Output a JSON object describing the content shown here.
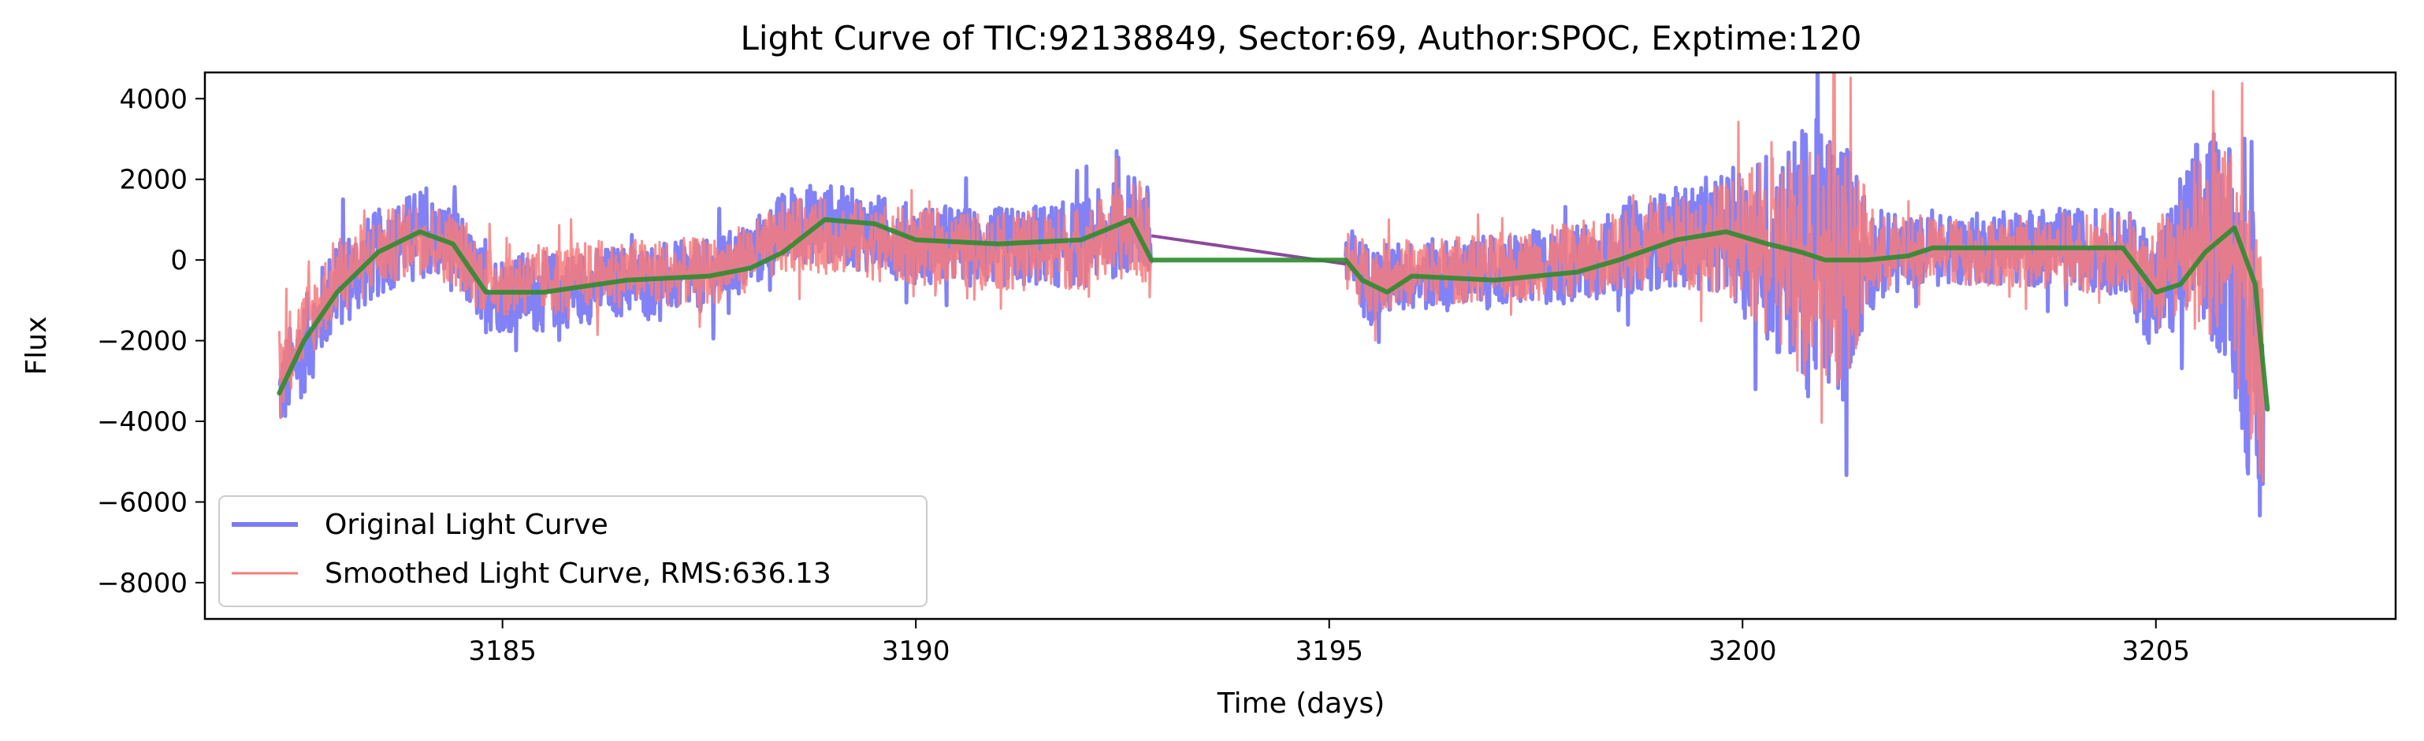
{
  "chart_data": {
    "type": "line",
    "title": "Light Curve of TIC:92138849, Sector:69, Author:SPOC, Exptime:120",
    "xlabel": "Time (days)",
    "ylabel": "Flux",
    "xlim": [
      3181.4,
      3207.9
    ],
    "ylim": [
      -8900,
      4650
    ],
    "x_ticks": [
      3185,
      3190,
      3195,
      3200,
      3205
    ],
    "x_tick_labels": [
      "3185",
      "3190",
      "3195",
      "3200",
      "3205"
    ],
    "y_ticks": [
      -8000,
      -6000,
      -4000,
      -2000,
      0,
      2000,
      4000
    ],
    "y_tick_labels": [
      "−8000",
      "−6000",
      "−4000",
      "−2000",
      "0",
      "2000",
      "4000"
    ],
    "grid": false,
    "legend_position": "lower-left",
    "series": [
      {
        "name": "Original Light Curve",
        "color": "#7b7bf5",
        "segments": [
          {
            "x": [
              3182.3,
              3183.0,
              3183.6,
              3184.0,
              3184.4,
              3184.8,
              3185.5,
              3186.5,
              3187.5,
              3188.0,
              3188.5,
              3189.0,
              3190.0,
              3191.0,
              3192.0,
              3192.7,
              3192.85
            ],
            "center": [
              -3300,
              -600,
              300,
              700,
              300,
              -800,
              -800,
              -500,
              -400,
              100,
              900,
              900,
              400,
              300,
              400,
              1000,
              300
            ],
            "amp": [
              1200,
              1200,
              1100,
              1100,
              1100,
              1000,
              1000,
              900,
              900,
              900,
              1000,
              1000,
              1000,
              1000,
              1100,
              1300,
              1400
            ]
          },
          {
            "x": [
              3195.2,
              3195.5,
              3196.0,
              3197.0,
              3198.0,
              3199.0,
              3199.8,
              3200.3,
              3200.8,
              3201.2,
              3201.6,
              3202.0,
              3203.0,
              3204.0,
              3204.6,
              3205.0,
              3205.5,
              3205.9,
              3206.3
            ],
            "center": [
              -100,
              -600,
              -400,
              -300,
              -100,
              500,
              700,
              300,
              0,
              0,
              100,
              200,
              300,
              300,
              200,
              -800,
              600,
              300,
              -3700
            ],
            "amp": [
              1000,
              1000,
              900,
              900,
              1000,
              1200,
              1500,
              2500,
              3500,
              3500,
              1200,
              900,
              900,
              1000,
              1100,
              1600,
              2500,
              3000,
              4000
            ]
          }
        ],
        "bridge": {
          "x": [
            3192.85,
            3195.2
          ],
          "y": [
            600,
            -100
          ]
        }
      },
      {
        "name": "Smoothed Light Curve, RMS:636.13",
        "color": "#f77b7b",
        "segments": [
          {
            "x": [
              3182.3,
              3183.0,
              3183.6,
              3184.0,
              3184.4,
              3184.8,
              3185.5,
              3186.5,
              3187.5,
              3188.0,
              3188.5,
              3189.0,
              3190.0,
              3191.0,
              3192.0,
              3192.7,
              3192.85
            ],
            "center": [
              -2600,
              -400,
              300,
              600,
              300,
              -500,
              -500,
              -300,
              -300,
              100,
              600,
              600,
              300,
              200,
              300,
              800,
              200
            ],
            "amp": [
              1100,
              1000,
              950,
              950,
              950,
              900,
              900,
              850,
              850,
              850,
              950,
              950,
              950,
              950,
              1050,
              1200,
              1300
            ]
          },
          {
            "x": [
              3195.2,
              3195.5,
              3196.0,
              3197.0,
              3198.0,
              3199.0,
              3199.8,
              3200.3,
              3200.8,
              3201.2,
              3201.6,
              3202.0,
              3203.0,
              3204.0,
              3204.6,
              3205.0,
              3205.5,
              3205.9,
              3206.3
            ],
            "center": [
              -100,
              -400,
              -300,
              -200,
              0,
              400,
              600,
              200,
              0,
              0,
              100,
              200,
              200,
              200,
              100,
              -500,
              500,
              300,
              -2500
            ],
            "amp": [
              900,
              900,
              850,
              850,
              950,
              1100,
              1400,
              2300,
              3200,
              3200,
              1100,
              850,
              850,
              950,
              1050,
              1400,
              2200,
              2700,
              3300
            ]
          }
        ]
      },
      {
        "name": "",
        "color": "#2e8b2e",
        "x": [
          3182.3,
          3182.6,
          3183.0,
          3183.5,
          3184.0,
          3184.4,
          3184.8,
          3185.5,
          3186.5,
          3187.5,
          3188.0,
          3188.4,
          3188.9,
          3189.5,
          3190.0,
          3191.0,
          3192.0,
          3192.6,
          3192.85,
          3195.2,
          3195.4,
          3195.7,
          3196.0,
          3197.0,
          3198.0,
          3198.5,
          3199.2,
          3199.8,
          3200.3,
          3200.7,
          3201.0,
          3201.5,
          3202.0,
          3202.3,
          3203.0,
          3204.0,
          3204.6,
          3205.0,
          3205.3,
          3205.6,
          3205.95,
          3206.2,
          3206.35
        ],
        "y": [
          -3300,
          -2000,
          -800,
          200,
          700,
          400,
          -800,
          -800,
          -500,
          -400,
          -200,
          200,
          1000,
          900,
          500,
          400,
          500,
          1000,
          0,
          0,
          -500,
          -800,
          -400,
          -500,
          -300,
          0,
          500,
          700,
          400,
          200,
          0,
          0,
          100,
          300,
          300,
          300,
          300,
          -800,
          -600,
          200,
          800,
          -600,
          -3700
        ]
      }
    ]
  }
}
